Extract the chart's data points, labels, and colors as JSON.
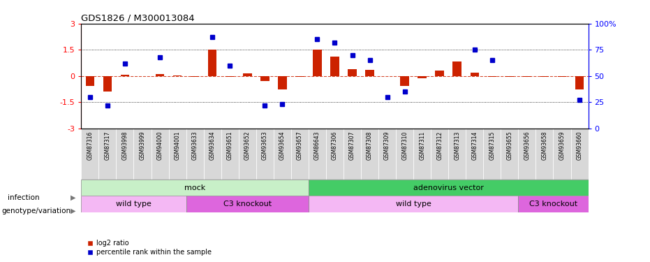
{
  "title": "GDS1826 / M300013084",
  "samples": [
    "GSM87316",
    "GSM87317",
    "GSM93998",
    "GSM93999",
    "GSM94000",
    "GSM94001",
    "GSM93633",
    "GSM93634",
    "GSM93651",
    "GSM93652",
    "GSM93653",
    "GSM93654",
    "GSM93657",
    "GSM86643",
    "GSM87306",
    "GSM87307",
    "GSM87308",
    "GSM87309",
    "GSM87310",
    "GSM87311",
    "GSM87312",
    "GSM87313",
    "GSM87314",
    "GSM87315",
    "GSM93655",
    "GSM93656",
    "GSM93658",
    "GSM93659",
    "GSM93660"
  ],
  "log2_ratio": [
    -0.55,
    -0.9,
    0.08,
    0.0,
    0.1,
    0.02,
    -0.05,
    1.5,
    -0.05,
    0.15,
    -0.3,
    -0.75,
    -0.05,
    1.5,
    1.1,
    0.4,
    0.35,
    0.0,
    -0.55,
    -0.12,
    0.3,
    0.85,
    0.2,
    -0.05,
    -0.05,
    -0.05,
    -0.05,
    -0.05,
    -0.75
  ],
  "percentile": [
    30,
    22,
    62,
    0,
    68,
    0,
    0,
    87,
    60,
    0,
    22,
    23,
    0,
    85,
    82,
    70,
    65,
    30,
    35,
    0,
    0,
    0,
    75,
    65,
    0,
    0,
    0,
    0,
    27
  ],
  "infection_groups": [
    {
      "label": "mock",
      "start": 0,
      "end": 13,
      "color": "#c8f0c8"
    },
    {
      "label": "adenovirus vector",
      "start": 13,
      "end": 29,
      "color": "#44cc66"
    }
  ],
  "genotype_groups": [
    {
      "label": "wild type",
      "start": 0,
      "end": 6,
      "color": "#f4b8f4"
    },
    {
      "label": "C3 knockout",
      "start": 6,
      "end": 13,
      "color": "#dd66dd"
    },
    {
      "label": "wild type",
      "start": 13,
      "end": 25,
      "color": "#f4b8f4"
    },
    {
      "label": "C3 knockout",
      "start": 25,
      "end": 29,
      "color": "#dd66dd"
    }
  ],
  "bar_color_red": "#cc2200",
  "bar_color_blue": "#0000cc",
  "ylim_left": [
    -3,
    3
  ],
  "ylim_right": [
    0,
    100
  ],
  "yticks_left": [
    -3,
    -1.5,
    0,
    1.5,
    3
  ],
  "yticks_right": [
    0,
    25,
    50,
    75,
    100
  ],
  "legend_items": [
    {
      "label": "log2 ratio",
      "color": "#cc2200"
    },
    {
      "label": "percentile rank within the sample",
      "color": "#0000cc"
    }
  ],
  "label_infection": "infection",
  "label_genotype": "genotype/variation",
  "ticklabel_bg": "#d8d8d8"
}
